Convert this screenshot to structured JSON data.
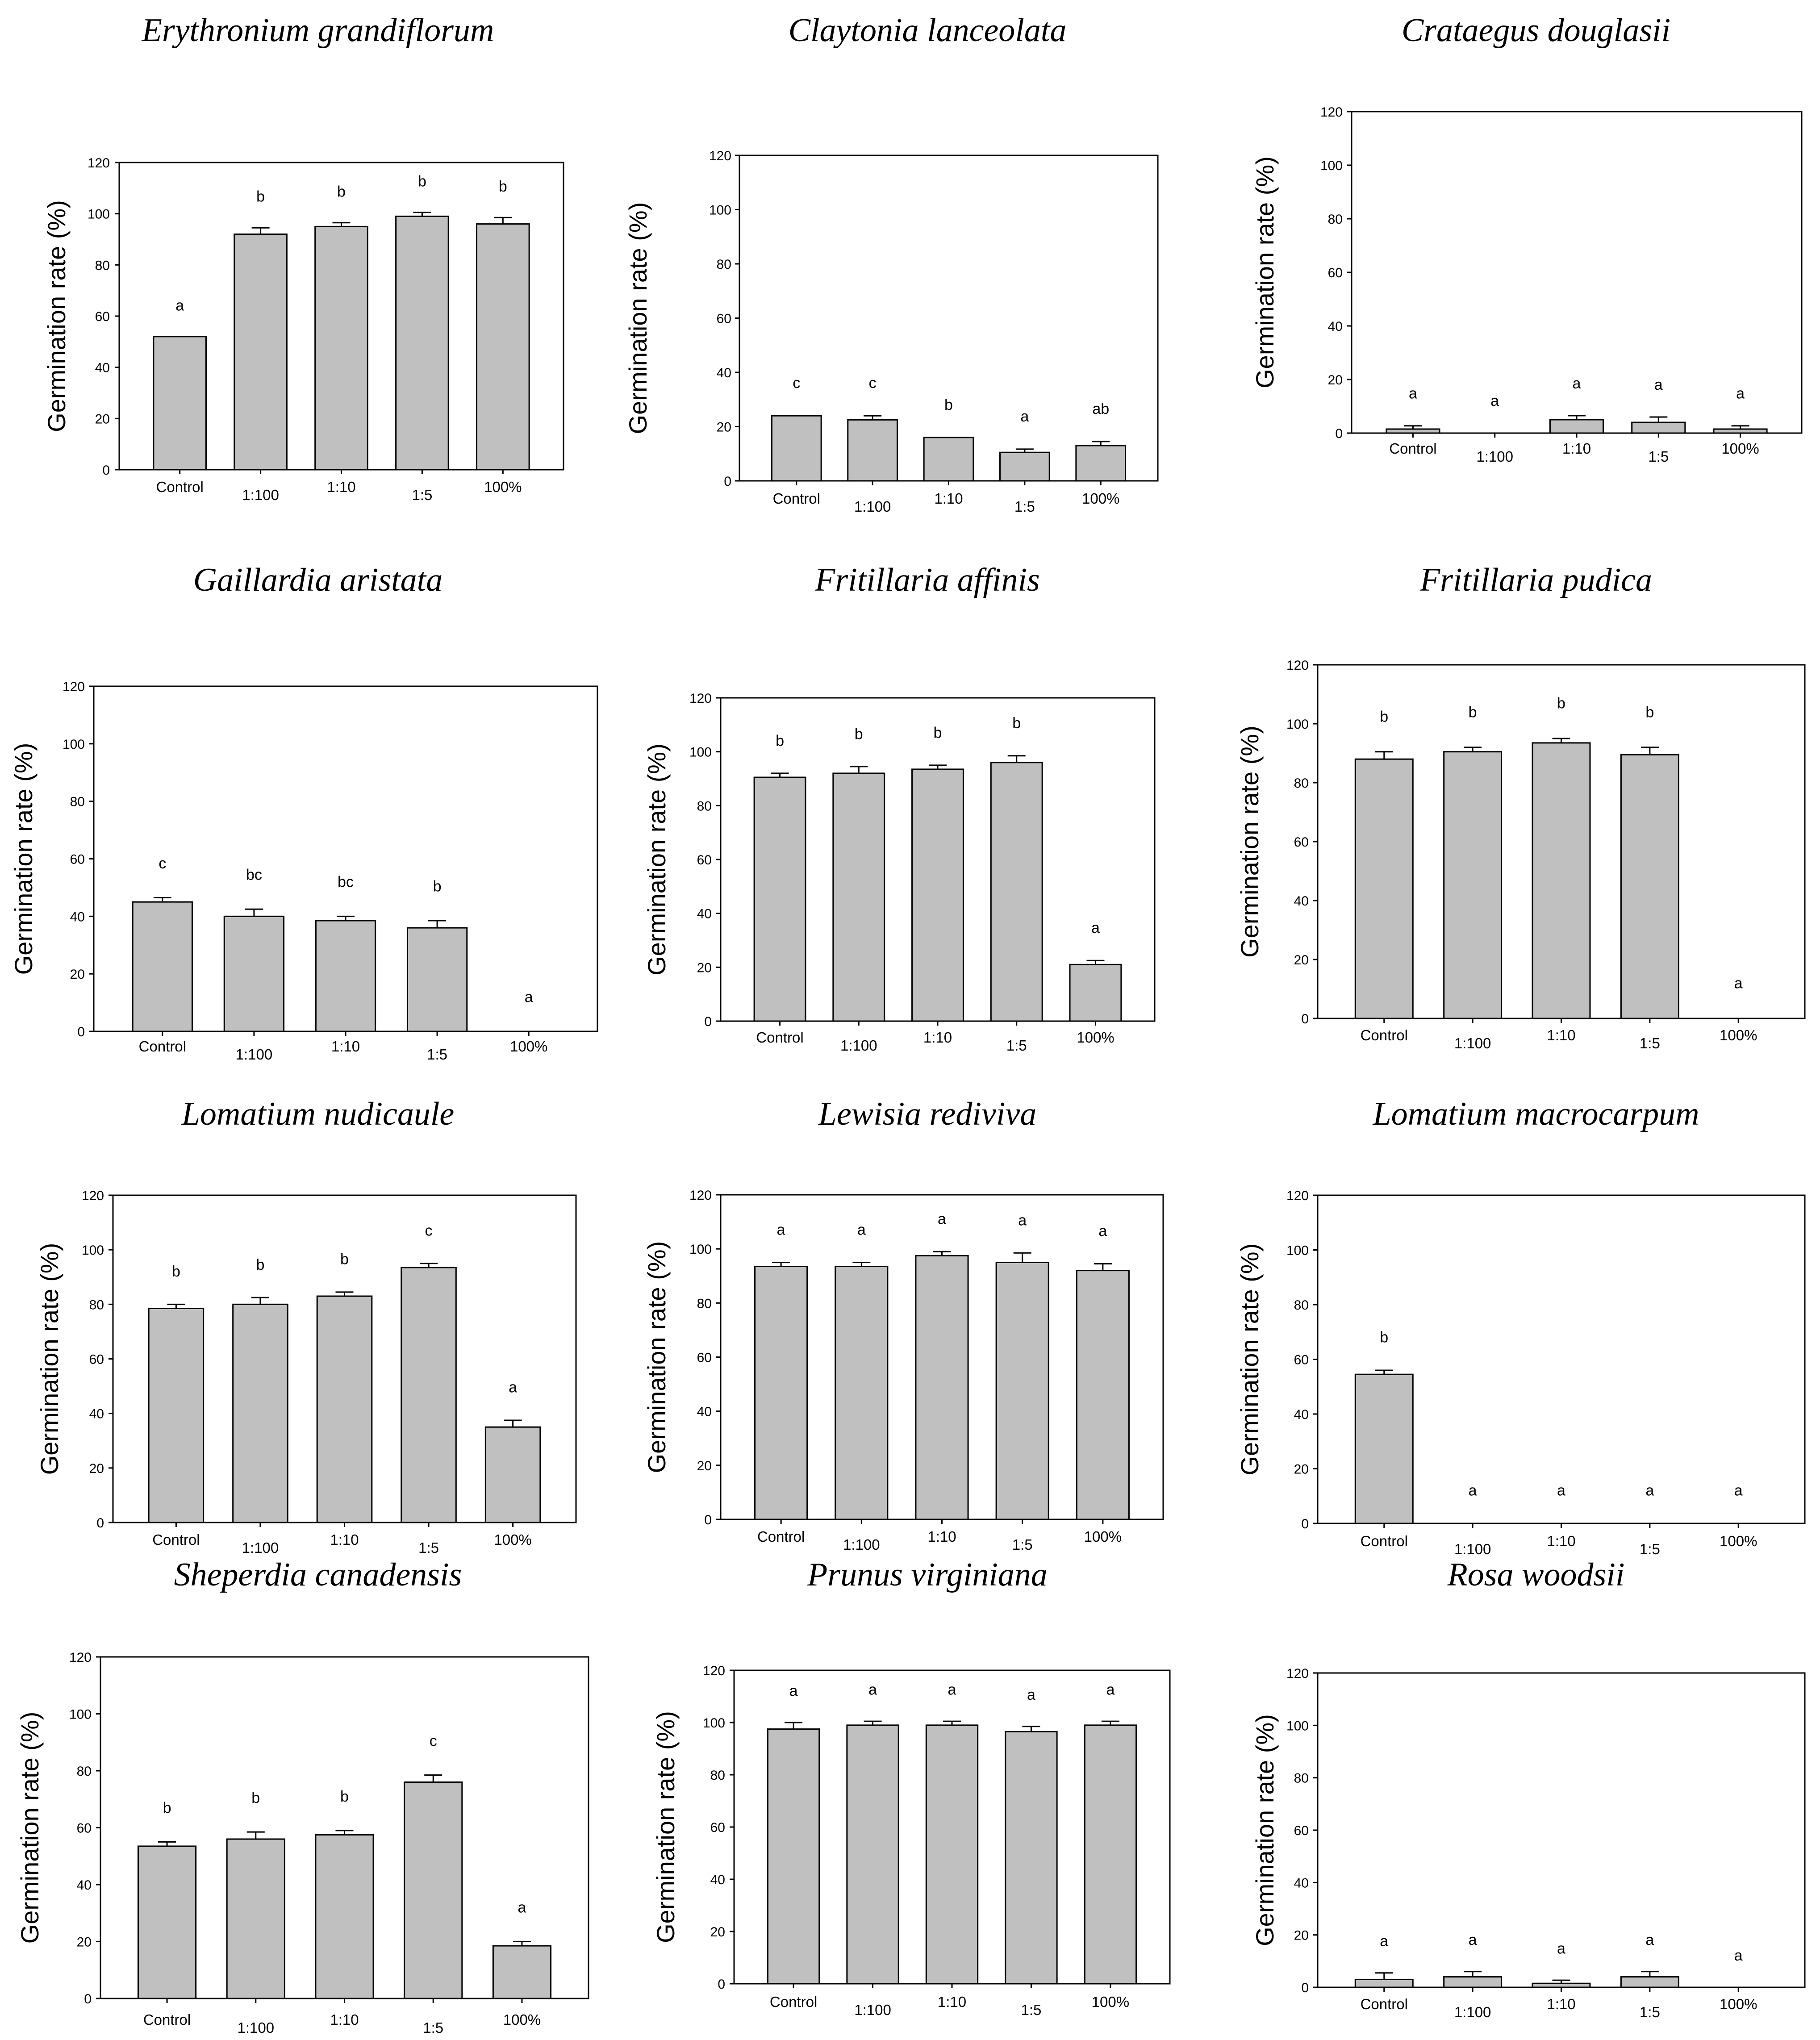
{
  "style": {
    "bar_fill": "#c0c0c0",
    "bar_stroke": "#000000",
    "axis_color": "#000000"
  },
  "chart_data": [
    {
      "type": "bar",
      "title": "Erythronium grandiflorum",
      "ylabel": "Germination rate (%)",
      "xlabel": "",
      "categories": [
        "Control",
        "1:100",
        "1:10",
        "1:5",
        "100%"
      ],
      "values": [
        52,
        92,
        95,
        99,
        96
      ],
      "errors": [
        0,
        2.5,
        1.5,
        1.5,
        2.5
      ],
      "letters": [
        "a",
        "b",
        "b",
        "b",
        "b"
      ],
      "ylim": [
        0,
        120
      ],
      "yticks": [
        0,
        20,
        40,
        60,
        80,
        100,
        120
      ]
    },
    {
      "type": "bar",
      "title": "Claytonia lanceolata",
      "ylabel": "Germination rate (%)",
      "xlabel": "",
      "categories": [
        "Control",
        "1:100",
        "1:10",
        "1:5",
        "100%"
      ],
      "values": [
        24,
        22.5,
        16,
        10.5,
        13
      ],
      "errors": [
        0,
        1.5,
        0,
        1.2,
        1.5
      ],
      "letters": [
        "c",
        "c",
        "b",
        "a",
        "ab"
      ],
      "ylim": [
        0,
        120
      ],
      "yticks": [
        0,
        20,
        40,
        60,
        80,
        100,
        120
      ]
    },
    {
      "type": "bar",
      "title": "Crataegus douglasii",
      "ylabel": "Germination rate (%)",
      "xlabel": "",
      "categories": [
        "Control",
        "1:100",
        "1:10",
        "1:5",
        "100%"
      ],
      "values": [
        1.5,
        0,
        5,
        4,
        1.5
      ],
      "errors": [
        1.2,
        0,
        1.5,
        2,
        1.2
      ],
      "letters": [
        "a",
        "a",
        "a",
        "a",
        "a"
      ],
      "ylim": [
        0,
        120
      ],
      "yticks": [
        0,
        20,
        40,
        60,
        80,
        100,
        120
      ]
    },
    {
      "type": "bar",
      "title": "Gaillardia aristata",
      "ylabel": "Germination rate (%)",
      "xlabel": "",
      "categories": [
        "Control",
        "1:100",
        "1:10",
        "1:5",
        "100%"
      ],
      "values": [
        45,
        40,
        38.5,
        36,
        0
      ],
      "errors": [
        1.5,
        2.5,
        1.5,
        2.5,
        0
      ],
      "letters": [
        "c",
        "bc",
        "bc",
        "b",
        "a"
      ],
      "ylim": [
        0,
        120
      ],
      "yticks": [
        0,
        20,
        40,
        60,
        80,
        100,
        120
      ]
    },
    {
      "type": "bar",
      "title": "Fritillaria affinis",
      "ylabel": "Germination rate (%)",
      "xlabel": "",
      "categories": [
        "Control",
        "1:100",
        "1:10",
        "1:5",
        "100%"
      ],
      "values": [
        90.5,
        92,
        93.5,
        96,
        21
      ],
      "errors": [
        1.5,
        2.5,
        1.5,
        2.5,
        1.5
      ],
      "letters": [
        "b",
        "b",
        "b",
        "b",
        "a"
      ],
      "ylim": [
        0,
        120
      ],
      "yticks": [
        0,
        20,
        40,
        60,
        80,
        100,
        120
      ]
    },
    {
      "type": "bar",
      "title": "Fritillaria pudica",
      "ylabel": "Germination rate (%)",
      "xlabel": "",
      "categories": [
        "Control",
        "1:100",
        "1:10",
        "1:5",
        "100%"
      ],
      "values": [
        88,
        90.5,
        93.5,
        89.5,
        0
      ],
      "errors": [
        2.5,
        1.5,
        1.5,
        2.5,
        0
      ],
      "letters": [
        "b",
        "b",
        "b",
        "b",
        "a"
      ],
      "ylim": [
        0,
        120
      ],
      "yticks": [
        0,
        20,
        40,
        60,
        80,
        100,
        120
      ]
    },
    {
      "type": "bar",
      "title": "Lomatium nudicaule",
      "ylabel": "Germination rate (%)",
      "xlabel": "",
      "categories": [
        "Control",
        "1:100",
        "1:10",
        "1:5",
        "100%"
      ],
      "values": [
        78.5,
        80,
        83,
        93.5,
        35
      ],
      "errors": [
        1.5,
        2.5,
        1.5,
        1.5,
        2.5
      ],
      "letters": [
        "b",
        "b",
        "b",
        "c",
        "a"
      ],
      "ylim": [
        0,
        120
      ],
      "yticks": [
        0,
        20,
        40,
        60,
        80,
        100,
        120
      ]
    },
    {
      "type": "bar",
      "title": "Lewisia rediviva",
      "ylabel": "Germination rate (%)",
      "xlabel": "",
      "categories": [
        "Control",
        "1:100",
        "1:10",
        "1:5",
        "100%"
      ],
      "values": [
        93.5,
        93.5,
        97.5,
        95,
        92
      ],
      "errors": [
        1.5,
        1.5,
        1.5,
        3.5,
        2.5
      ],
      "letters": [
        "a",
        "a",
        "a",
        "a",
        "a"
      ],
      "ylim": [
        0,
        120
      ],
      "yticks": [
        0,
        20,
        40,
        60,
        80,
        100,
        120
      ]
    },
    {
      "type": "bar",
      "title": "Lomatium macrocarpum",
      "ylabel": "Germination rate (%)",
      "xlabel": "",
      "categories": [
        "Control",
        "1:100",
        "1:10",
        "1:5",
        "100%"
      ],
      "values": [
        54.5,
        0,
        0,
        0,
        0
      ],
      "errors": [
        1.5,
        0,
        0,
        0,
        0
      ],
      "letters": [
        "b",
        "a",
        "a",
        "a",
        "a"
      ],
      "ylim": [
        0,
        120
      ],
      "yticks": [
        0,
        20,
        40,
        60,
        80,
        100,
        120
      ]
    },
    {
      "type": "bar",
      "title": "Sheperdia canadensis",
      "ylabel": "Germination rate (%)",
      "xlabel": "",
      "categories": [
        "Control",
        "1:100",
        "1:10",
        "1:5",
        "100%"
      ],
      "values": [
        53.5,
        56,
        57.5,
        76,
        18.5
      ],
      "errors": [
        1.5,
        2.5,
        1.5,
        2.5,
        1.5
      ],
      "letters": [
        "b",
        "b",
        "b",
        "c",
        "a"
      ],
      "ylim": [
        0,
        120
      ],
      "yticks": [
        0,
        20,
        40,
        60,
        80,
        100,
        120
      ]
    },
    {
      "type": "bar",
      "title": "Prunus virginiana",
      "ylabel": "Germination rate (%)",
      "xlabel": "",
      "categories": [
        "Control",
        "1:100",
        "1:10",
        "1:5",
        "100%"
      ],
      "values": [
        97.5,
        99,
        99,
        96.5,
        99
      ],
      "errors": [
        2.5,
        1.5,
        1.5,
        2,
        1.5
      ],
      "letters": [
        "a",
        "a",
        "a",
        "a",
        "a"
      ],
      "ylim": [
        0,
        120
      ],
      "yticks": [
        0,
        20,
        40,
        60,
        80,
        100,
        120
      ]
    },
    {
      "type": "bar",
      "title": "Rosa woodsii",
      "ylabel": "Germination rate (%)",
      "xlabel": "",
      "categories": [
        "Control",
        "1:100",
        "1:10",
        "1:5",
        "100%"
      ],
      "values": [
        3,
        4,
        1.5,
        4,
        0
      ],
      "errors": [
        2.5,
        2,
        1.2,
        2,
        0
      ],
      "letters": [
        "a",
        "a",
        "a",
        "a",
        "a"
      ],
      "ylim": [
        0,
        120
      ],
      "yticks": [
        0,
        20,
        40,
        60,
        80,
        100,
        120
      ]
    }
  ]
}
